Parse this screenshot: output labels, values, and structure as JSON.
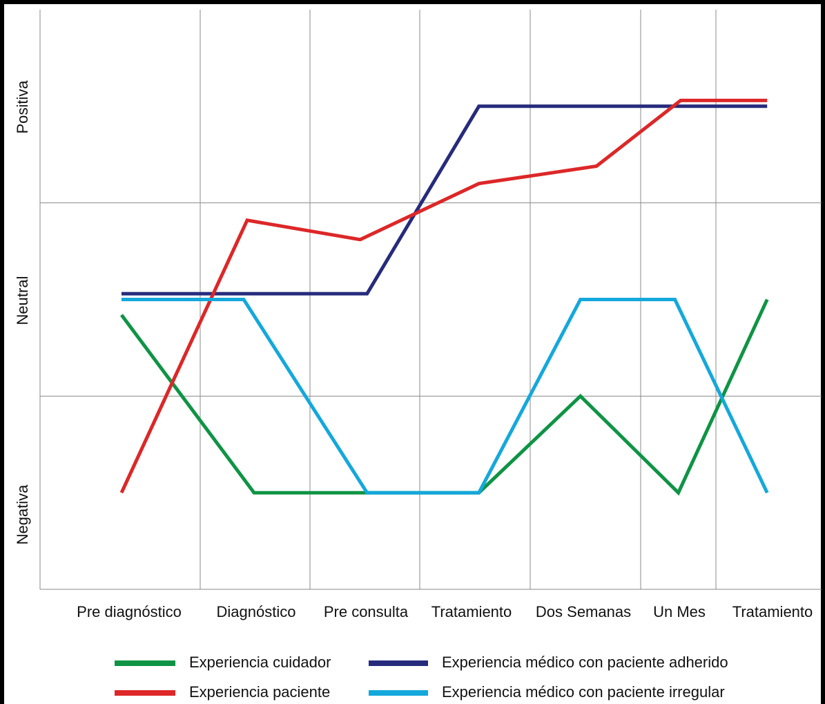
{
  "chart_data": {
    "type": "line",
    "title": "",
    "xlabel": "",
    "ylabel": "",
    "categories": [
      "Pre diagnóstico",
      "Diagnóstico",
      "Pre consulta",
      "Tratamiento",
      "Dos Semanas",
      "Un Mes",
      "Tratamiento"
    ],
    "y_levels": [
      "Negativa",
      "Neutral",
      "Positiva"
    ],
    "ylim": [
      0,
      3
    ],
    "grid": true,
    "legend_position": "bottom",
    "colors": {
      "cuidador": "#0e9444",
      "paciente": "#dd2728",
      "adherido": "#262b7c",
      "irregular": "#14a8dc"
    },
    "series": [
      {
        "name": "Experiencia cuidador",
        "color_key": "cuidador",
        "points": [
          [
            0.0,
            1.42
          ],
          [
            1.15,
            0.5
          ],
          [
            2.13,
            0.5
          ],
          [
            3.1,
            0.5
          ],
          [
            3.98,
            1.0
          ],
          [
            4.83,
            0.5
          ],
          [
            5.6,
            1.5
          ]
        ]
      },
      {
        "name": "Experiencia médico con paciente adherido",
        "color_key": "adherido",
        "points": [
          [
            0.0,
            1.53
          ],
          [
            2.13,
            1.53
          ],
          [
            3.1,
            2.5
          ],
          [
            5.6,
            2.5
          ]
        ]
      },
      {
        "name": "Experiencia paciente",
        "color_key": "paciente",
        "points": [
          [
            0.0,
            0.5
          ],
          [
            1.09,
            1.91
          ],
          [
            2.07,
            1.81
          ],
          [
            3.1,
            2.1
          ],
          [
            4.12,
            2.19
          ],
          [
            4.85,
            2.53
          ],
          [
            5.6,
            2.53
          ]
        ]
      },
      {
        "name": "Experiencia médico con paciente irregular",
        "color_key": "irregular",
        "points": [
          [
            0.0,
            1.5
          ],
          [
            1.06,
            1.5
          ],
          [
            2.13,
            0.5
          ],
          [
            3.1,
            0.5
          ],
          [
            3.98,
            1.5
          ],
          [
            4.8,
            1.5
          ],
          [
            5.6,
            0.5
          ]
        ]
      }
    ],
    "legend": [
      {
        "label": "Experiencia cuidador",
        "color_key": "cuidador"
      },
      {
        "label": "Experiencia médico con paciente adherido",
        "color_key": "adherido"
      },
      {
        "label": "Experiencia paciente",
        "color_key": "paciente"
      },
      {
        "label": "Experiencia médico con paciente irregular",
        "color_key": "irregular"
      }
    ]
  }
}
